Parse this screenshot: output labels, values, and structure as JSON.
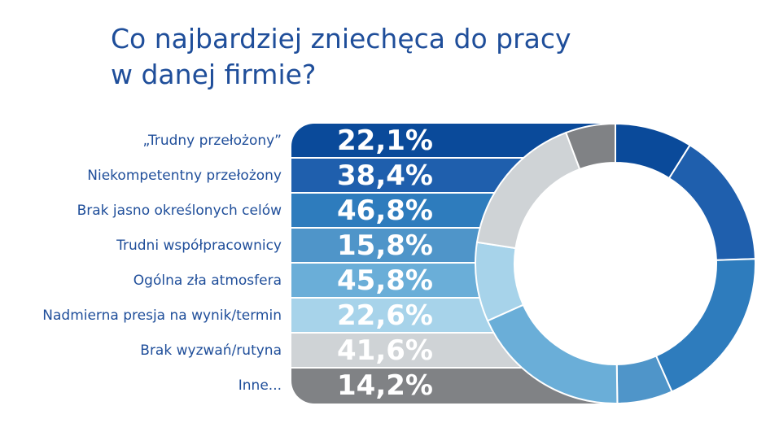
{
  "title_lines": [
    "Co najbardziej zniechęca do pracy",
    "w danej firmie?"
  ],
  "colors": [
    "#0a4a9a",
    "#1f5fad",
    "#2e7cbd",
    "#4f95c9",
    "#6aaed8",
    "#a7d3ea",
    "#cfd3d6",
    "#808285"
  ],
  "chart_data": {
    "type": "pie",
    "title": "Co najbardziej zniechęca do pracy w danej firmie?",
    "categories": [
      "„Trudny przełożony”",
      "Niekompetentny przełożony",
      "Brak jasno określonych celów",
      "Trudni współpracownicy",
      "Ogólna zła atmosfera",
      "Nadmierna presja na wynik/termin",
      "Brak wyzwań/rutyna",
      "Inne..."
    ],
    "values": [
      22.1,
      38.4,
      46.8,
      15.8,
      45.8,
      22.6,
      41.6,
      14.2
    ],
    "value_labels": [
      "22,1%",
      "38,4%",
      "46,8%",
      "15,8%",
      "45,8%",
      "22,6%",
      "41,6%",
      "14,2%"
    ],
    "unit": "%",
    "style": "donut"
  }
}
